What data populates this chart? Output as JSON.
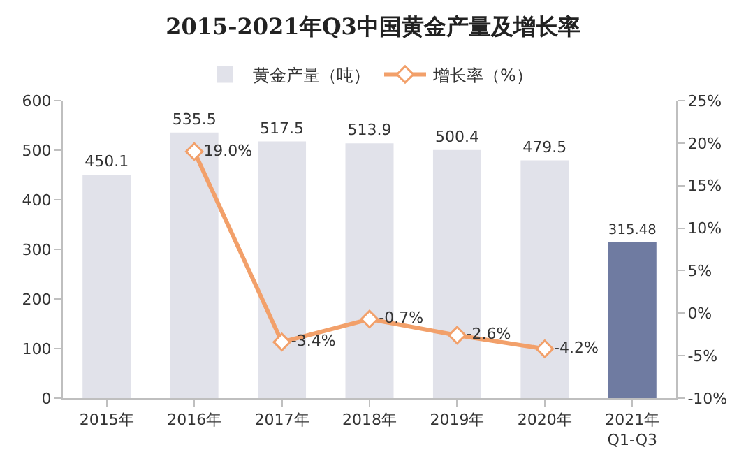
{
  "chart_data": {
    "type": "bar",
    "title": "2015-2021年Q3中国黄金产量及增长率",
    "categories": [
      "2015年",
      "2016年",
      "2017年",
      "2018年",
      "2019年",
      "2020年",
      "2021年\nQ1-Q3"
    ],
    "series": [
      {
        "name": "黄金产量（吨）",
        "colors": [
          "#e1e2ea",
          "#e1e2ea",
          "#e1e2ea",
          "#e1e2ea",
          "#e1e2ea",
          "#e1e2ea",
          "#6f7ba1"
        ],
        "values": [
          450.1,
          535.5,
          517.5,
          513.9,
          500.4,
          479.5,
          315.48
        ]
      },
      {
        "name": "增长率（%）",
        "type": "line",
        "axis": "y2",
        "color": "#f2a06a",
        "values": [
          null,
          19.0,
          -3.4,
          -0.7,
          -2.6,
          -4.2,
          null
        ],
        "value_labels": [
          null,
          "19.0%",
          "-3.4%",
          "-0.7%",
          "-2.6%",
          "-4.2%",
          null
        ]
      }
    ],
    "data_labels": true,
    "marker": "diamond",
    "line_style": "solid",
    "legend": "top",
    "grid": false,
    "ylim": [
      0,
      600
    ],
    "yticks": [
      0,
      100,
      200,
      300,
      400,
      500,
      600
    ],
    "y2lim": [
      -10,
      25
    ],
    "y2ticks": [
      {
        "value": -10,
        "label": "-10%"
      },
      {
        "value": -5,
        "label": "-5%"
      },
      {
        "value": 0,
        "label": "0%"
      },
      {
        "value": 5,
        "label": "5%"
      },
      {
        "value": 10,
        "label": "10%"
      },
      {
        "value": 15,
        "label": "15%"
      },
      {
        "value": 20,
        "label": "20%"
      },
      {
        "value": 25,
        "label": "25%"
      }
    ]
  }
}
